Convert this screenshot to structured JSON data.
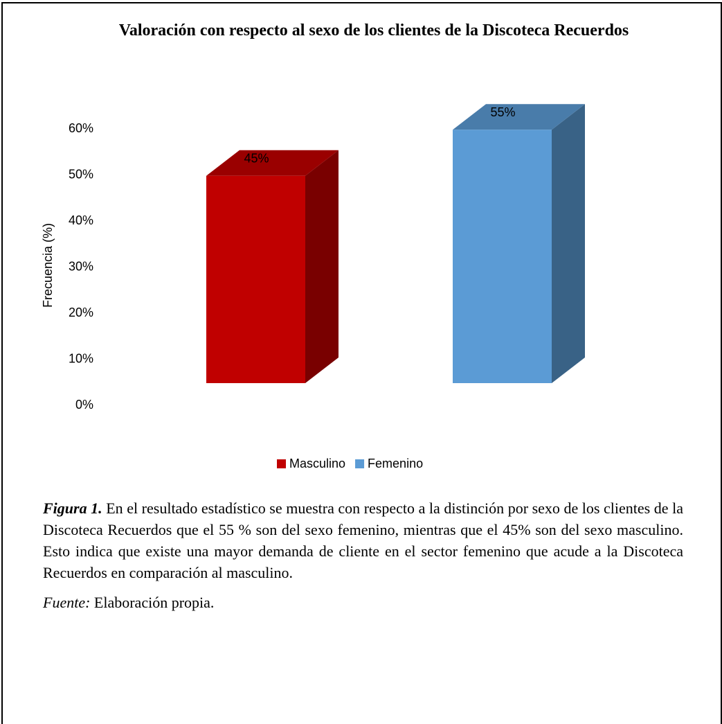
{
  "chart_data": {
    "type": "bar3d",
    "title": "Valoración con respecto al sexo de los clientes de la Discoteca Recuerdos",
    "y_label": "Frecuencia (%)",
    "series": [
      {
        "name": "Masculino",
        "color": "#c00000",
        "values": [
          45
        ],
        "value_labels": [
          "45%"
        ]
      },
      {
        "name": "Femenino",
        "color": "#5b9bd5",
        "values": [
          55
        ],
        "value_labels": [
          "55%"
        ]
      }
    ],
    "ylim": [
      0,
      60
    ],
    "yticks": [
      {
        "value": 0,
        "label": "0%"
      },
      {
        "value": 10,
        "label": "10%"
      },
      {
        "value": 20,
        "label": "20%"
      },
      {
        "value": 30,
        "label": "30%"
      },
      {
        "value": 40,
        "label": "40%"
      },
      {
        "value": 50,
        "label": "50%"
      },
      {
        "value": 60,
        "label": "60%"
      }
    ],
    "legend": "bottom"
  },
  "caption": {
    "label": "Figura 1.",
    "text": "En el resultado estadístico se muestra con respecto a la distinción por sexo de los clientes de la Discoteca Recuerdos que el 55 % son del sexo femenino, mientras que el 45% son del sexo masculino. Esto indica que existe una mayor demanda de cliente en el sector femenino que acude a la Discoteca Recuerdos en comparación al masculino."
  },
  "source": {
    "label": "Fuente:",
    "text": "Elaboración propia."
  }
}
